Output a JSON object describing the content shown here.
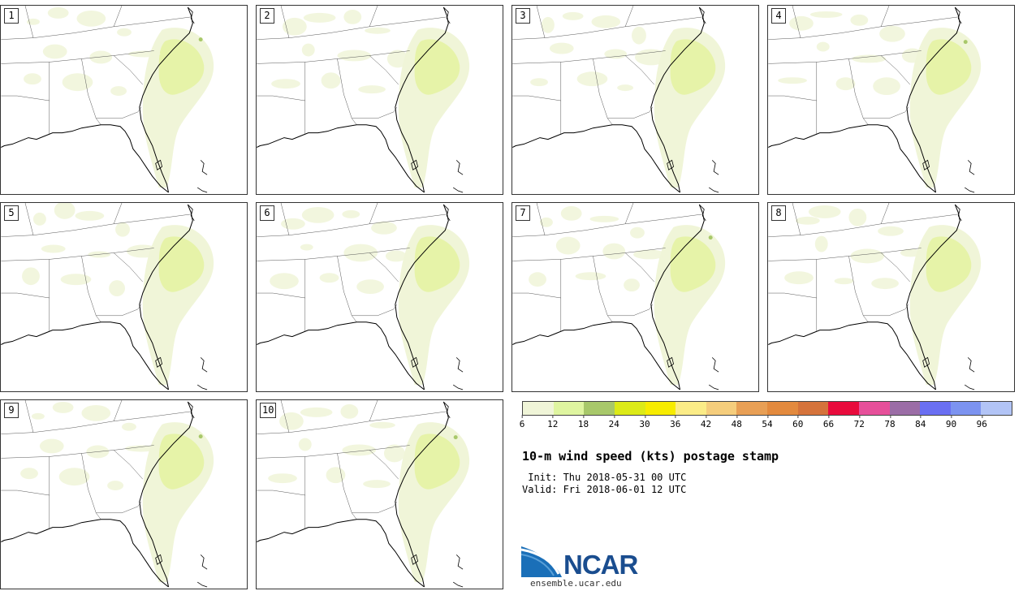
{
  "panels": [
    {
      "label": "1"
    },
    {
      "label": "2"
    },
    {
      "label": "3"
    },
    {
      "label": "4"
    },
    {
      "label": "5"
    },
    {
      "label": "6"
    },
    {
      "label": "7"
    },
    {
      "label": "8"
    },
    {
      "label": "9"
    },
    {
      "label": "10"
    }
  ],
  "colorbar": {
    "colors": [
      "#f0f5d8",
      "#dff5a0",
      "#a8c86a",
      "#dcea18",
      "#f7ec00",
      "#fbec87",
      "#f5cd7c",
      "#e89f55",
      "#e38a3e",
      "#d5733b",
      "#e80b3c",
      "#e6509a",
      "#9b6da6",
      "#6a6ff2",
      "#7c93f0",
      "#b2c4f6"
    ],
    "ticks": [
      "6",
      "12",
      "18",
      "24",
      "30",
      "36",
      "42",
      "48",
      "54",
      "60",
      "66",
      "72",
      "78",
      "84",
      "90",
      "96"
    ]
  },
  "title": "10-m wind speed (kts) postage stamp",
  "init": " Init: Thu 2018-05-31 00 UTC",
  "valid": "Valid: Fri 2018-06-01 12 UTC",
  "logo": {
    "text": "NCAR",
    "site": "ensemble.ucar.edu",
    "brand_color": "#1a4d8f"
  },
  "field_colors": {
    "light": "#f0f5d8",
    "medium": "#e6f3a8",
    "dark": "#a8c86a"
  }
}
